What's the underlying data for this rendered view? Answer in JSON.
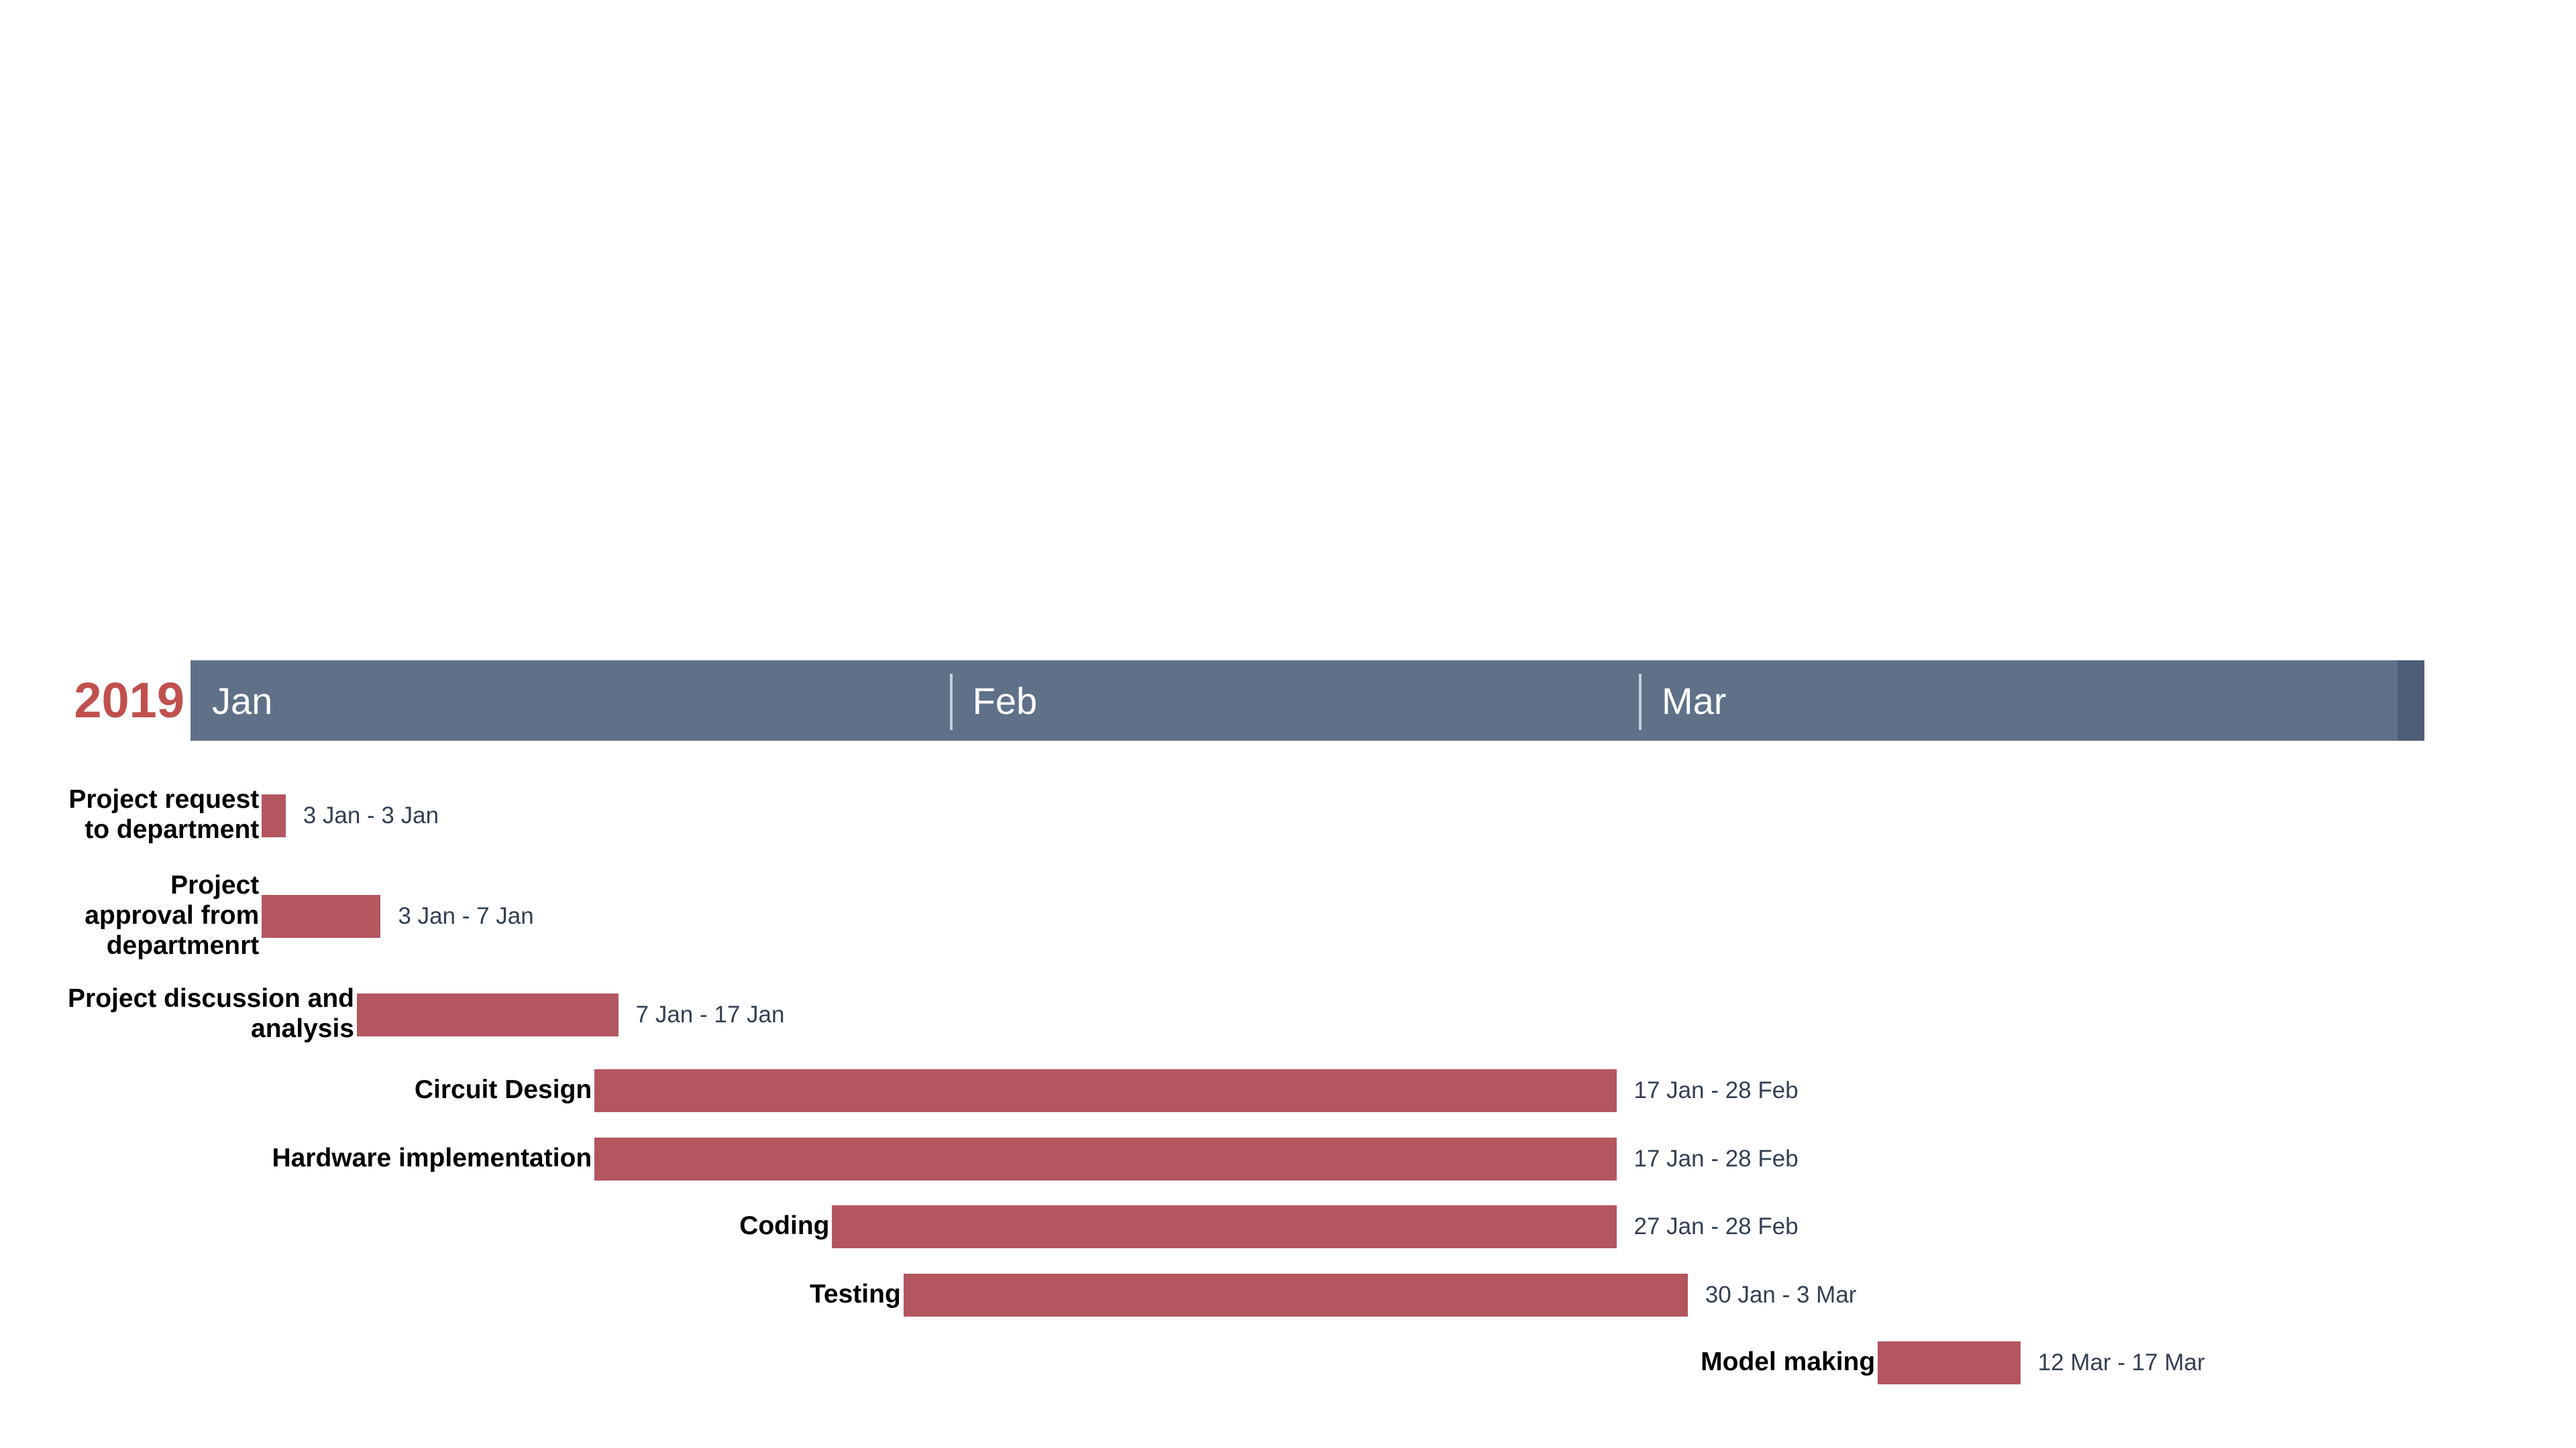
{
  "chart_data": {
    "type": "gantt",
    "year": "2019",
    "x_range": [
      "2018-12-31",
      "2019-04-04"
    ],
    "months": [
      {
        "label": "Jan",
        "start": "2018-12-31"
      },
      {
        "label": "Feb",
        "start": "2019-02-01"
      },
      {
        "label": "Mar",
        "start": "2019-03-02"
      }
    ],
    "tasks": [
      {
        "name": "Project request\nto department",
        "start": "2019-01-03",
        "end": "2019-01-03",
        "range_label": "3 Jan - 3 Jan"
      },
      {
        "name": "Project\napproval from\ndepartmenrt",
        "start": "2019-01-03",
        "end": "2019-01-07",
        "range_label": "3 Jan - 7 Jan"
      },
      {
        "name": "Project discussion and\nanalysis",
        "start": "2019-01-07",
        "end": "2019-01-17",
        "range_label": "7 Jan - 17 Jan"
      },
      {
        "name": "Circuit Design",
        "start": "2019-01-17",
        "end": "2019-02-28",
        "range_label": "17 Jan - 28 Feb"
      },
      {
        "name": "Hardware implementation",
        "start": "2019-01-17",
        "end": "2019-02-28",
        "range_label": "17 Jan - 28 Feb"
      },
      {
        "name": "Coding",
        "start": "2019-01-27",
        "end": "2019-02-28",
        "range_label": "27 Jan - 28 Feb"
      },
      {
        "name": "Testing",
        "start": "2019-01-30",
        "end": "2019-03-03",
        "range_label": "30 Jan - 3 Mar"
      },
      {
        "name": "Model making",
        "start": "2019-03-12",
        "end": "2019-03-17",
        "range_label": "12 Mar - 17 Mar"
      }
    ],
    "colors": {
      "bar": "#b3565f",
      "header": "#5f7089",
      "year": "#c0504d",
      "date_text": "#333f55"
    }
  }
}
